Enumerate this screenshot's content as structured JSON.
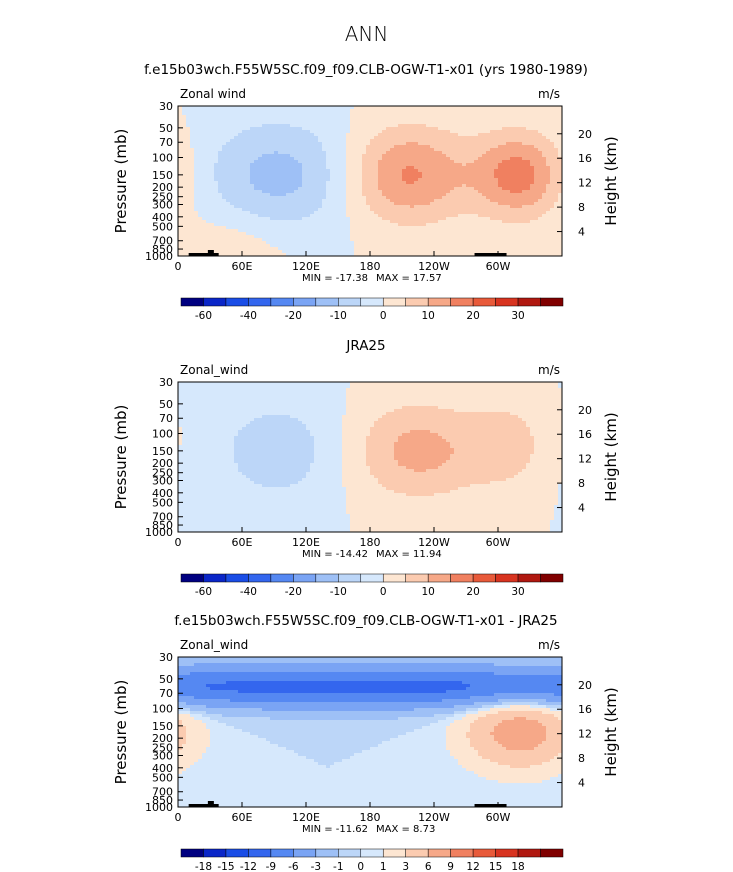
{
  "figure_title": "ANN",
  "colors": {
    "frame": "#000000",
    "land": "#000000"
  },
  "chart_data": [
    {
      "type": "heatmap",
      "title": "f.e15b03wch.F55W5SC.f09_f09.CLB-OGW-T1-x01 (yrs 1980-1989)",
      "variable_label": "Zonal wind",
      "units": "m/s",
      "ylabel": "Pressure (mb)",
      "y2label": "Height (km)",
      "x_ticks": [
        "0",
        "60E",
        "120E",
        "180",
        "120W",
        "60W"
      ],
      "y_ticks": [
        "30",
        "50",
        "70",
        "100",
        "150",
        "200",
        "250",
        "300",
        "400",
        "500",
        "700",
        "850",
        "1000"
      ],
      "y2_ticks": [
        "20",
        "16",
        "12",
        "8",
        "4"
      ],
      "min": -17.38,
      "max": 17.57,
      "min_label": "MIN = -17.38",
      "max_label": "MAX =  17.57",
      "colorbar_levels": [
        "-60",
        "-40",
        "-20",
        "-10",
        "0",
        "10",
        "20",
        "30"
      ],
      "colorbar_colors": [
        "#000080",
        "#0a26c8",
        "#1a4de6",
        "#3366ee",
        "#5588f2",
        "#7aa4f4",
        "#9ec0f6",
        "#bcd6f8",
        "#d6e8fc",
        "#fde6d2",
        "#fbcbb0",
        "#f6a888",
        "#f08060",
        "#e85a3a",
        "#d83420",
        "#b01810",
        "#800000"
      ],
      "features": [
        {
          "name": "tropical easterly",
          "lon": 95,
          "lev": 150,
          "value": -12,
          "lon_hw": 50,
          "lev_hw": 0.9
        },
        {
          "name": "westerly jet north Pacific",
          "lon": 215,
          "lev": 150,
          "value": 16,
          "lon_hw": 40,
          "lev_hw": 0.8
        },
        {
          "name": "westerly jet east",
          "lon": 320,
          "lev": 150,
          "value": 17.5,
          "lon_hw": 30,
          "lev_hw": 0.7
        },
        {
          "name": "low level westerly",
          "lon": 50,
          "lev": 850,
          "value": 4,
          "lon_hw": 35,
          "lev_hw": 0.6
        }
      ]
    },
    {
      "type": "heatmap",
      "title": "JRA25",
      "variable_label": "Zonal_wind",
      "units": "m/s",
      "ylabel": "Pressure (mb)",
      "y2label": "Height (km)",
      "x_ticks": [
        "0",
        "60E",
        "120E",
        "180",
        "120W",
        "60W"
      ],
      "y_ticks": [
        "30",
        "50",
        "70",
        "100",
        "150",
        "200",
        "250",
        "300",
        "400",
        "500",
        "700",
        "850",
        "1000"
      ],
      "y2_ticks": [
        "20",
        "16",
        "12",
        "8",
        "4"
      ],
      "min": -14.42,
      "max": 11.94,
      "min_label": "MIN = -14.42",
      "max_label": "MAX =  11.94",
      "colorbar_levels": [
        "-60",
        "-40",
        "-20",
        "-10",
        "0",
        "10",
        "20",
        "30"
      ],
      "colorbar_colors": [
        "#000080",
        "#0a26c8",
        "#1a4de6",
        "#3366ee",
        "#5588f2",
        "#7aa4f4",
        "#9ec0f6",
        "#bcd6f8",
        "#d6e8fc",
        "#fde6d2",
        "#fbcbb0",
        "#f6a888",
        "#f08060",
        "#e85a3a",
        "#d83420",
        "#b01810",
        "#800000"
      ],
      "features": [
        {
          "name": "tropical easterly",
          "lon": 95,
          "lev": 150,
          "value": -8,
          "lon_hw": 45,
          "lev_hw": 0.9
        },
        {
          "name": "westerly jet",
          "lon": 225,
          "lev": 150,
          "value": 12,
          "lon_hw": 45,
          "lev_hw": 0.8
        },
        {
          "name": "westerly jet east",
          "lon": 310,
          "lev": 130,
          "value": 7,
          "lon_hw": 25,
          "lev_hw": 0.7
        }
      ]
    },
    {
      "type": "heatmap",
      "title": "f.e15b03wch.F55W5SC.f09_f09.CLB-OGW-T1-x01 - JRA25",
      "variable_label": "Zonal_wind",
      "units": "m/s",
      "ylabel": "Pressure (mb)",
      "y2label": "Height (km)",
      "x_ticks": [
        "0",
        "60E",
        "120E",
        "180",
        "120W",
        "60W"
      ],
      "y_ticks": [
        "30",
        "50",
        "70",
        "100",
        "150",
        "200",
        "250",
        "300",
        "400",
        "500",
        "700",
        "850",
        "1000"
      ],
      "y2_ticks": [
        "20",
        "16",
        "12",
        "8",
        "4"
      ],
      "min": -11.62,
      "max": 8.73,
      "min_label": "MIN = -11.62",
      "max_label": "MAX =    8.73",
      "colorbar_levels": [
        "-18",
        "-15",
        "-12",
        "-9",
        "-6",
        "-3",
        "-1",
        "0",
        "1",
        "3",
        "6",
        "9",
        "12",
        "15",
        "18"
      ],
      "colorbar_colors": [
        "#000080",
        "#0a26c8",
        "#1a4de6",
        "#3366ee",
        "#5588f2",
        "#7aa4f4",
        "#9ec0f6",
        "#bcd6f8",
        "#d6e8fc",
        "#fde6d2",
        "#fbcbb0",
        "#f6a888",
        "#f08060",
        "#e85a3a",
        "#d83420",
        "#b01810",
        "#800000"
      ],
      "features": [
        {
          "name": "stratospheric easterly band",
          "lon": 180,
          "lev": 60,
          "value": -10,
          "lon_hw": 400,
          "lev_hw": 0.35
        },
        {
          "name": "westerly anomaly east",
          "lon": 320,
          "lev": 170,
          "value": 8,
          "lon_hw": 35,
          "lev_hw": 0.6
        }
      ]
    }
  ]
}
